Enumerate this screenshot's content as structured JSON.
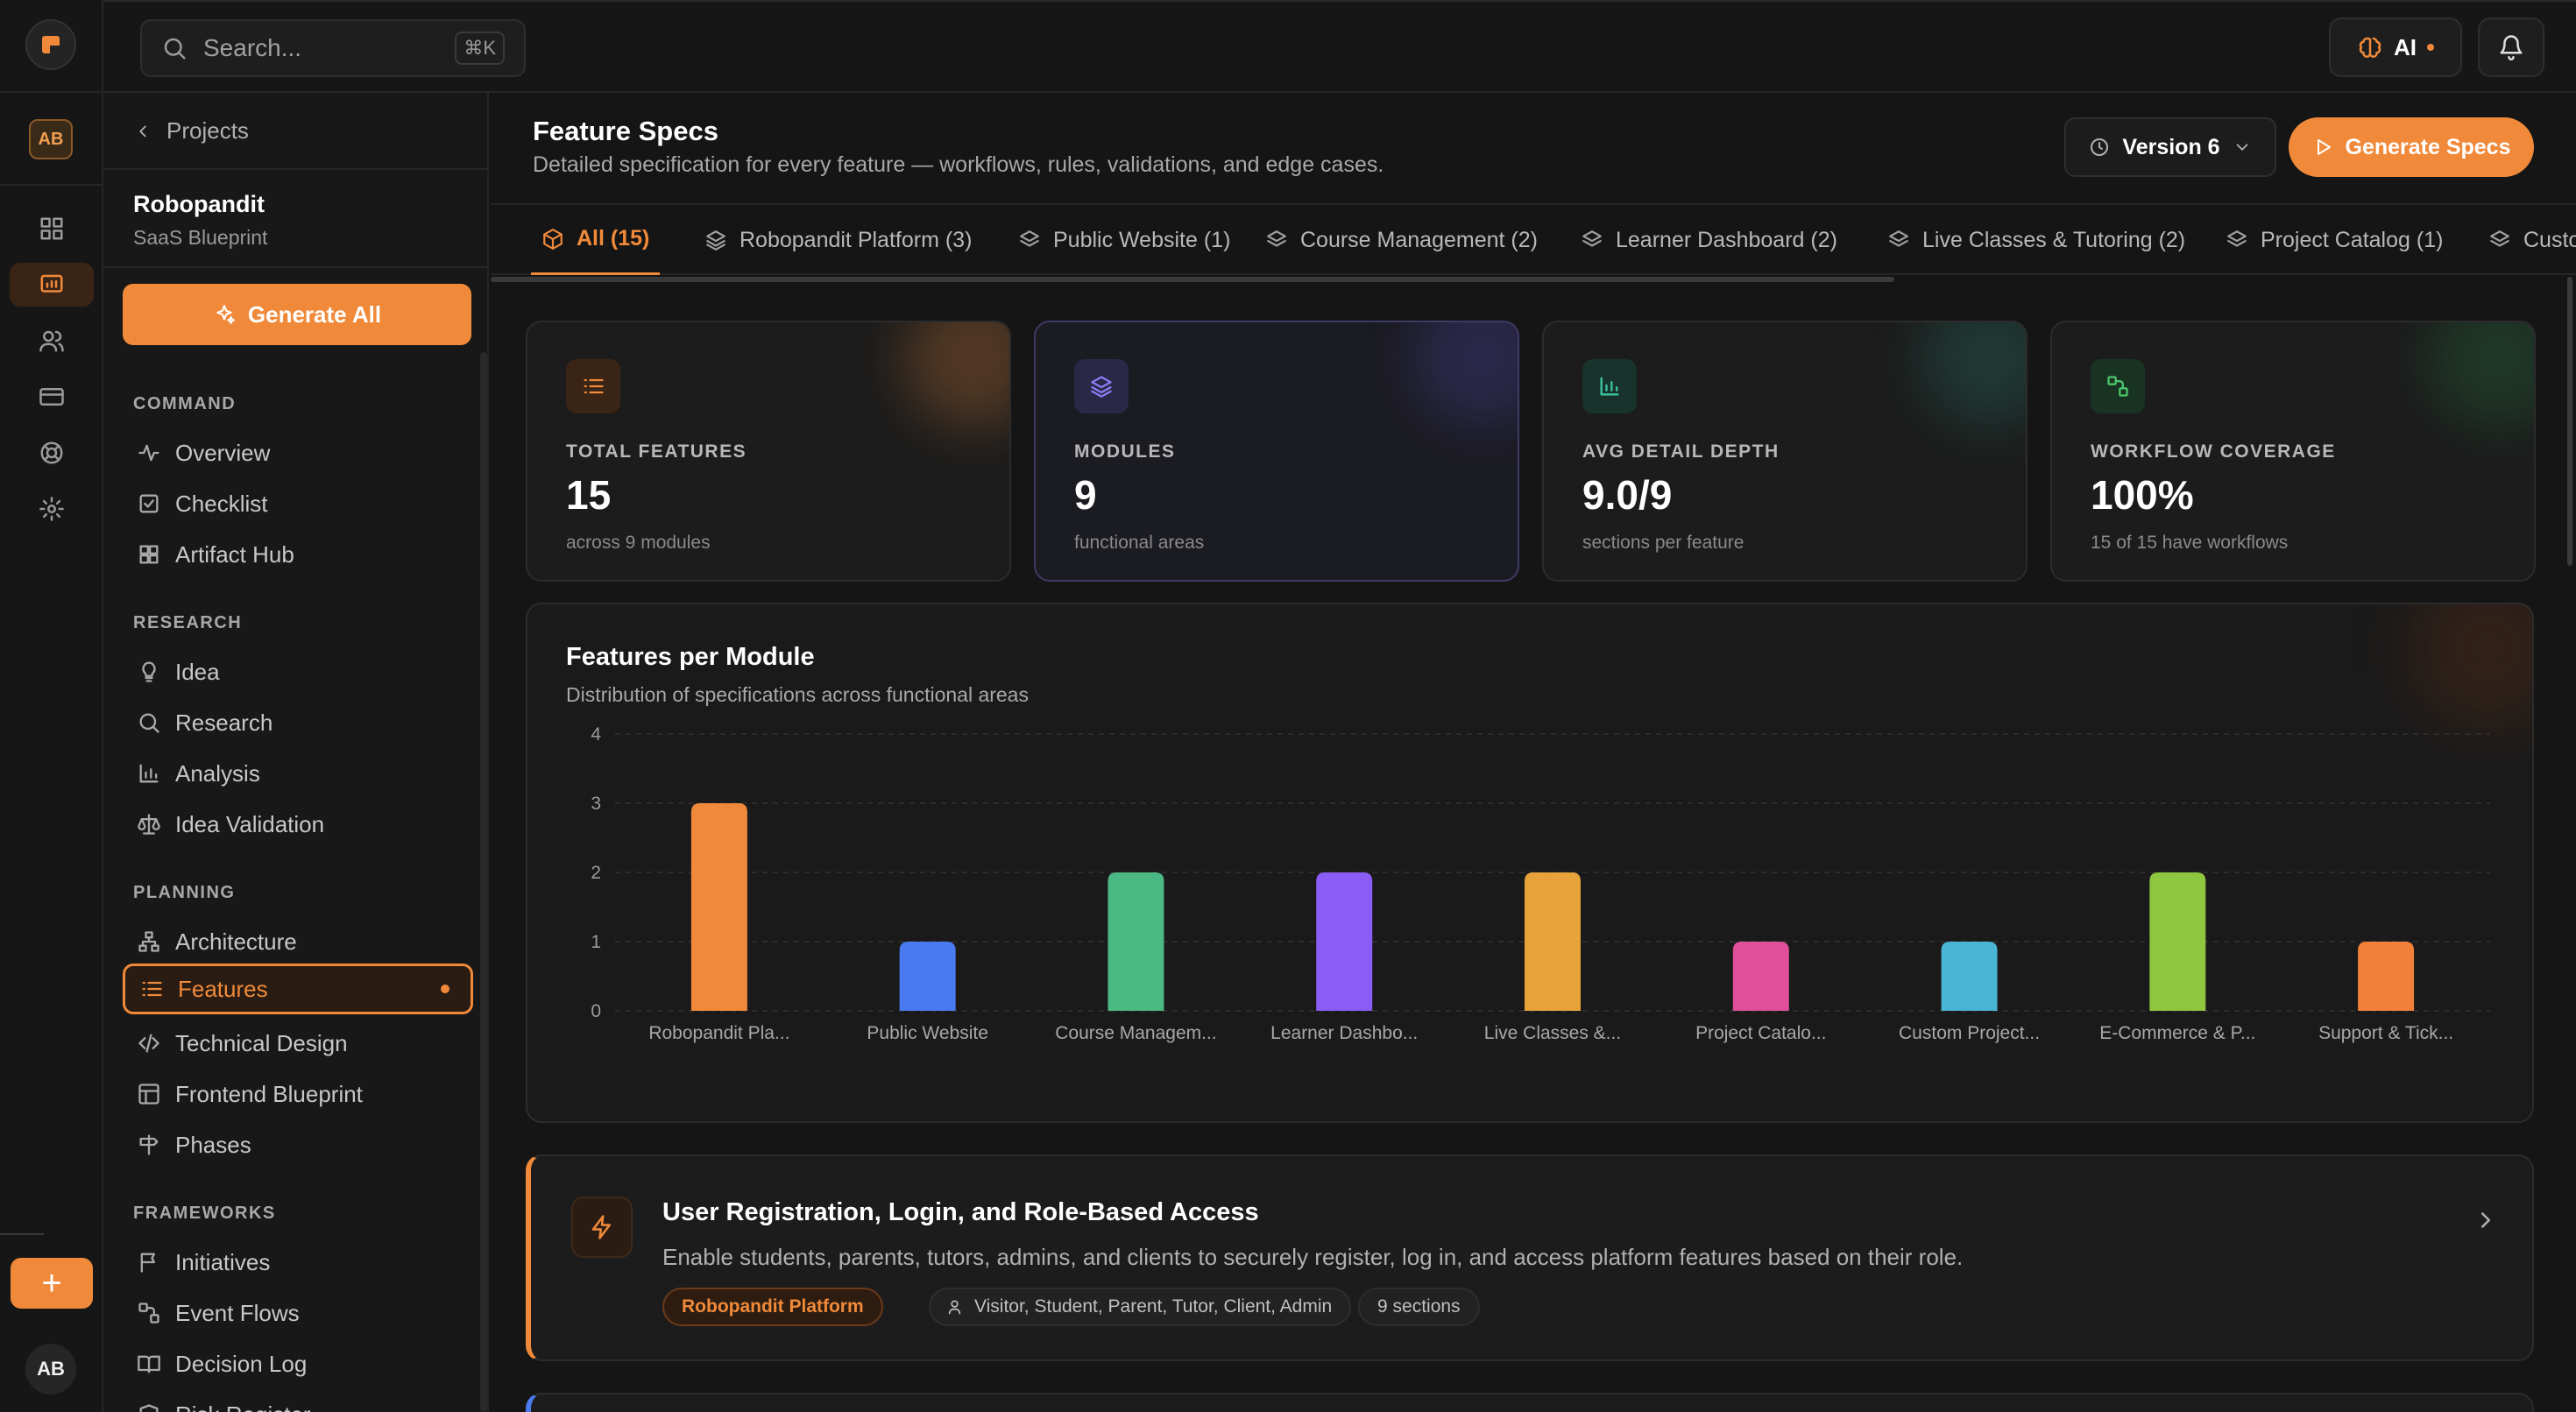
{
  "topbar": {
    "search_placeholder": "Search...",
    "search_shortcut": "⌘K",
    "ai_label": "AI"
  },
  "rail": {
    "avatar_initials": "AB",
    "user_initials": "AB",
    "add_label": "+"
  },
  "sidebar": {
    "back_label": "Projects",
    "project_name": "Robopandit",
    "project_type": "SaaS Blueprint",
    "generate_all": "Generate All",
    "sections": [
      {
        "title": "COMMAND",
        "items": [
          {
            "label": "Overview",
            "icon": "activity-icon"
          },
          {
            "label": "Checklist",
            "icon": "checkbox-icon"
          },
          {
            "label": "Artifact Hub",
            "icon": "grid-icon"
          }
        ]
      },
      {
        "title": "RESEARCH",
        "items": [
          {
            "label": "Idea",
            "icon": "lightbulb-icon"
          },
          {
            "label": "Research",
            "icon": "search-icon"
          },
          {
            "label": "Analysis",
            "icon": "bar-chart-icon"
          },
          {
            "label": "Idea Validation",
            "icon": "scale-icon"
          }
        ]
      },
      {
        "title": "PLANNING",
        "items": [
          {
            "label": "Architecture",
            "icon": "network-icon"
          },
          {
            "label": "Features",
            "icon": "list-icon",
            "active": true
          },
          {
            "label": "Technical Design",
            "icon": "code-icon"
          },
          {
            "label": "Frontend Blueprint",
            "icon": "layout-icon"
          },
          {
            "label": "Phases",
            "icon": "signpost-icon"
          }
        ]
      },
      {
        "title": "FRAMEWORKS",
        "items": [
          {
            "label": "Initiatives",
            "icon": "flag-icon"
          },
          {
            "label": "Event Flows",
            "icon": "workflow-icon"
          },
          {
            "label": "Decision Log",
            "icon": "book-icon"
          },
          {
            "label": "Risk Register",
            "icon": "shield-icon"
          }
        ]
      }
    ]
  },
  "header": {
    "title": "Feature Specs",
    "subtitle": "Detailed specification for every feature — workflows, rules, validations, and edge cases.",
    "version_label": "Version 6",
    "generate_specs": "Generate Specs"
  },
  "tabs": [
    {
      "label": "All (15)",
      "active": true
    },
    {
      "label": "Robopandit Platform (3)"
    },
    {
      "label": "Public Website (1)"
    },
    {
      "label": "Course Management (2)"
    },
    {
      "label": "Learner Dashboard (2)"
    },
    {
      "label": "Live Classes & Tutoring (2)"
    },
    {
      "label": "Project Catalog (1)"
    },
    {
      "label": "Custo"
    }
  ],
  "stats": [
    {
      "label": "TOTAL FEATURES",
      "value": "15",
      "sub": "across 9 modules",
      "icon": "list-icon",
      "accent": "#f08a3a"
    },
    {
      "label": "MODULES",
      "value": "9",
      "sub": "functional areas",
      "icon": "layers-icon",
      "accent": "#8b7cf6"
    },
    {
      "label": "AVG DETAIL DEPTH",
      "value": "9.0/9",
      "sub": "sections per feature",
      "icon": "bar-chart-icon",
      "accent": "#3cc4a0"
    },
    {
      "label": "WORKFLOW COVERAGE",
      "value": "100%",
      "sub": "15 of 15 have workflows",
      "icon": "workflow-icon",
      "accent": "#4cc46a"
    }
  ],
  "chart_data": {
    "type": "bar",
    "title": "Features per Module",
    "subtitle": "Distribution of specifications across functional areas",
    "categories": [
      "Robopandit Pla...",
      "Public Website",
      "Course Managem...",
      "Learner Dashbo...",
      "Live Classes &...",
      "Project Catalo...",
      "Custom Project...",
      "E-Commerce & P...",
      "Support & Tick..."
    ],
    "values": [
      3,
      1,
      2,
      2,
      2,
      1,
      1,
      2,
      1
    ],
    "colors": [
      "#f08a3a",
      "#4a7aef",
      "#4cb882",
      "#8b5cf6",
      "#e8a23a",
      "#e0509a",
      "#4ab4d4",
      "#8ec63f",
      "#f0803a"
    ],
    "yticks": [
      "0",
      "1",
      "2",
      "3",
      "4"
    ],
    "ylim": [
      0,
      4
    ],
    "grid": true
  },
  "feature": {
    "title": "User Registration, Login, and Role-Based Access",
    "description": "Enable students, parents, tutors, admins, and clients to securely register, log in, and access platform features based on their role.",
    "module": "Robopandit Platform",
    "roles": "Visitor, Student, Parent, Tutor, Client, Admin",
    "sections": "9 sections"
  }
}
